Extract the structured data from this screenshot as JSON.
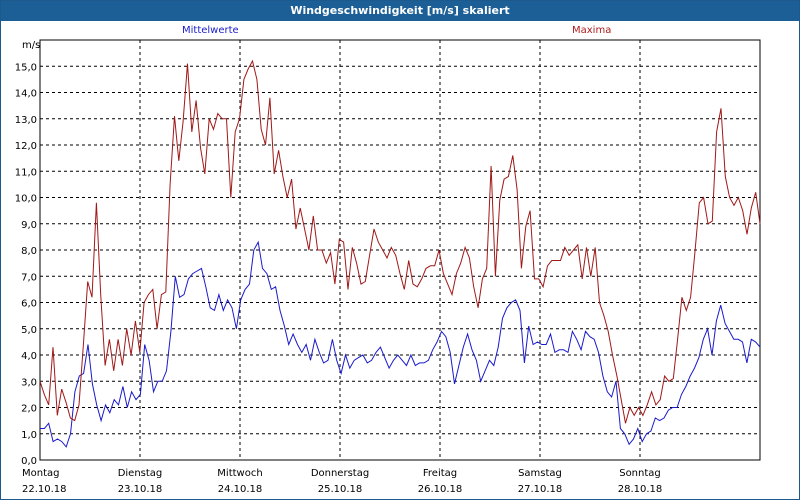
{
  "window": {
    "title": "Windgeschwindigkeit [m/s] skaliert"
  },
  "chart_data": {
    "type": "line",
    "title": "Windgeschwindigkeit [m/s] skaliert",
    "ylabel": "m/s",
    "ylim": [
      0,
      16
    ],
    "yticks": [
      "0,0",
      "1,0",
      "2,0",
      "3,0",
      "4,0",
      "5,0",
      "6,0",
      "7,0",
      "8,0",
      "9,0",
      "10,0",
      "11,0",
      "12,0",
      "13,0",
      "14,0",
      "15,0"
    ],
    "xlim": [
      0,
      7.2
    ],
    "xticks": [
      {
        "day": "Montag",
        "date": "22.10.18"
      },
      {
        "day": "Dienstag",
        "date": "23.10.18"
      },
      {
        "day": "Mittwoch",
        "date": "24.10.18"
      },
      {
        "day": "Donnerstag",
        "date": "25.10.18"
      },
      {
        "day": "Freitag",
        "date": "26.10.18"
      },
      {
        "day": "Samstag",
        "date": "27.10.18"
      },
      {
        "day": "Sonntag",
        "date": "28.10.18"
      }
    ],
    "grid": true,
    "colors": {
      "mittelwerte": "#1a1acc",
      "maxima": "#a01818"
    },
    "series": [
      {
        "name": "Mittelwerte",
        "y": [
          1.2,
          1.2,
          1.4,
          0.7,
          0.8,
          0.7,
          0.5,
          1.0,
          2.6,
          3.2,
          3.3,
          4.4,
          2.9,
          2.1,
          1.5,
          2.1,
          1.8,
          2.3,
          2.1,
          2.8,
          2.0,
          2.6,
          2.3,
          2.5,
          4.4,
          3.8,
          2.6,
          3.0,
          3.0,
          3.4,
          4.9,
          7.0,
          6.2,
          6.3,
          6.9,
          7.1,
          7.2,
          7.3,
          6.6,
          5.8,
          5.7,
          6.3,
          5.7,
          6.1,
          5.8,
          5.0,
          6.1,
          6.5,
          6.7,
          8.0,
          8.3,
          7.3,
          7.1,
          6.5,
          6.6,
          5.7,
          5.1,
          4.4,
          4.8,
          4.4,
          4.1,
          4.4,
          3.8,
          4.6,
          4.1,
          3.7,
          3.8,
          4.6,
          3.8,
          3.3,
          4.0,
          3.5,
          3.8,
          3.9,
          4.0,
          3.7,
          3.8,
          4.1,
          4.3,
          3.9,
          3.5,
          3.8,
          4.0,
          3.8,
          3.6,
          4.0,
          3.6,
          3.7,
          3.7,
          3.8,
          4.2,
          4.5,
          4.9,
          4.7,
          4.1,
          2.9,
          3.6,
          4.3,
          4.8,
          4.2,
          3.8,
          3.0,
          3.4,
          3.8,
          3.6,
          4.3,
          5.4,
          5.8,
          6.0,
          6.1,
          5.7,
          3.7,
          5.1,
          4.4,
          4.5,
          4.4,
          4.4,
          4.8,
          4.1,
          4.2,
          4.2,
          4.1,
          4.9,
          4.6,
          4.2,
          4.9,
          4.7,
          4.6,
          4.1,
          3.2,
          2.6,
          2.4,
          3.0,
          1.2,
          1.0,
          0.6,
          0.8,
          1.2,
          0.7,
          1.0,
          1.1,
          1.6,
          1.5,
          1.6,
          1.9,
          2.0,
          2.0,
          2.5,
          2.8,
          3.2,
          3.5,
          3.9,
          4.6,
          5.0,
          4.0,
          5.3,
          5.9,
          5.2,
          4.9,
          4.6,
          4.6,
          4.5,
          3.7,
          4.6,
          4.5,
          4.3
        ]
      },
      {
        "name": "Maxima",
        "y": [
          3.0,
          2.5,
          2.1,
          4.3,
          1.7,
          2.7,
          2.2,
          1.6,
          1.5,
          2.1,
          4.4,
          6.8,
          6.2,
          9.8,
          6.3,
          3.6,
          4.6,
          3.4,
          4.6,
          3.6,
          5.0,
          4.0,
          5.3,
          4.1,
          6.0,
          6.3,
          6.5,
          5.0,
          6.3,
          6.4,
          10.5,
          13.1,
          11.4,
          12.9,
          15.1,
          12.5,
          13.7,
          11.9,
          10.9,
          13.0,
          12.6,
          13.2,
          13.0,
          13.0,
          10.0,
          12.5,
          13.0,
          14.5,
          14.9,
          15.2,
          14.5,
          12.6,
          12.0,
          13.8,
          10.9,
          11.8,
          10.8,
          10.0,
          10.7,
          8.8,
          9.6,
          8.8,
          8.0,
          9.3,
          8.0,
          8.0,
          7.5,
          7.9,
          6.7,
          8.4,
          8.3,
          6.5,
          8.1,
          7.5,
          6.7,
          6.8,
          7.8,
          8.8,
          8.3,
          8.0,
          7.7,
          8.1,
          7.8,
          7.1,
          6.5,
          7.6,
          6.7,
          6.6,
          6.9,
          7.3,
          7.4,
          7.4,
          8.0,
          7.1,
          6.7,
          6.3,
          7.1,
          7.5,
          8.1,
          7.7,
          6.6,
          5.8,
          6.9,
          7.3,
          11.2,
          7.0,
          9.9,
          10.7,
          10.8,
          11.6,
          10.3,
          7.3,
          8.9,
          9.5,
          6.9,
          6.9,
          6.6,
          7.4,
          7.6,
          7.6,
          7.6,
          8.1,
          7.8,
          8.0,
          8.2,
          6.9,
          8.1,
          7.0,
          8.1,
          6.0,
          5.5,
          4.9,
          4.0,
          3.2,
          2.3,
          1.4,
          2.0,
          1.7,
          2.0,
          1.7,
          2.1,
          2.6,
          2.1,
          2.3,
          3.2,
          3.0,
          3.1,
          4.6,
          6.2,
          5.7,
          6.2,
          7.9,
          9.8,
          10.0,
          9.0,
          9.1,
          12.5,
          13.4,
          10.8,
          10.0,
          9.7,
          10.0,
          9.5,
          8.6,
          9.6,
          10.2,
          9.0
        ]
      }
    ]
  }
}
